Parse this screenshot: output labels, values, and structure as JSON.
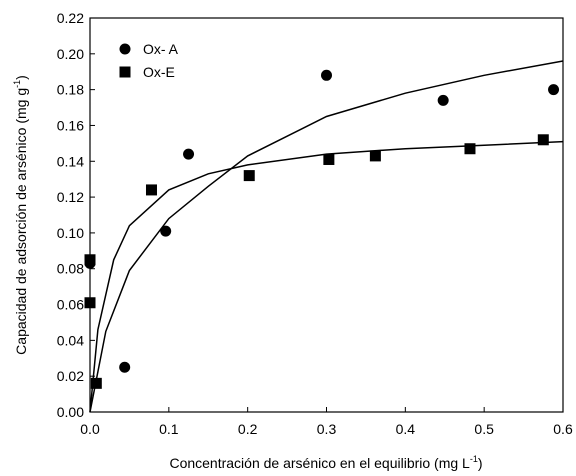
{
  "chart_data": {
    "type": "scatter",
    "xlabel": "Concentración de arsénico en el equilibrio  (mg L",
    "xlabel_sup": "-1",
    "xlabel_tail": ")",
    "ylabel": "Capacidad de adsorción de arsénico (mg g",
    "ylabel_sup": "-1",
    "ylabel_tail": ")",
    "xlim": [
      0.0,
      0.6
    ],
    "ylim": [
      0.0,
      0.22
    ],
    "xticks": [
      "0.0",
      "0.1",
      "0.2",
      "0.3",
      "0.4",
      "0.5",
      "0.6"
    ],
    "yticks": [
      "0.00",
      "0.02",
      "0.04",
      "0.06",
      "0.08",
      "0.10",
      "0.12",
      "0.14",
      "0.16",
      "0.18",
      "0.20",
      "0.22"
    ],
    "grid": false,
    "legend_position": "top-left",
    "series": [
      {
        "name": "Ox- A",
        "marker": "circle",
        "points": [
          [
            0.0,
            0.083
          ],
          [
            0.044,
            0.025
          ],
          [
            0.096,
            0.101
          ],
          [
            0.125,
            0.144
          ],
          [
            0.3,
            0.188
          ],
          [
            0.448,
            0.174
          ],
          [
            0.588,
            0.18
          ]
        ],
        "fit_curve": [
          [
            0.0,
            0.0
          ],
          [
            0.02,
            0.045
          ],
          [
            0.05,
            0.079
          ],
          [
            0.1,
            0.108
          ],
          [
            0.15,
            0.126
          ],
          [
            0.2,
            0.143
          ],
          [
            0.3,
            0.165
          ],
          [
            0.4,
            0.178
          ],
          [
            0.5,
            0.188
          ],
          [
            0.6,
            0.196
          ]
        ]
      },
      {
        "name": "Ox-E",
        "marker": "square",
        "points": [
          [
            0.0,
            0.061
          ],
          [
            0.0,
            0.085
          ],
          [
            0.008,
            0.016
          ],
          [
            0.078,
            0.124
          ],
          [
            0.202,
            0.132
          ],
          [
            0.303,
            0.141
          ],
          [
            0.362,
            0.143
          ],
          [
            0.482,
            0.147
          ],
          [
            0.575,
            0.152
          ]
        ],
        "fit_curve": [
          [
            0.0,
            0.0
          ],
          [
            0.01,
            0.046
          ],
          [
            0.03,
            0.085
          ],
          [
            0.05,
            0.104
          ],
          [
            0.1,
            0.124
          ],
          [
            0.15,
            0.133
          ],
          [
            0.2,
            0.138
          ],
          [
            0.3,
            0.144
          ],
          [
            0.4,
            0.147
          ],
          [
            0.5,
            0.149
          ],
          [
            0.6,
            0.151
          ]
        ]
      }
    ]
  }
}
